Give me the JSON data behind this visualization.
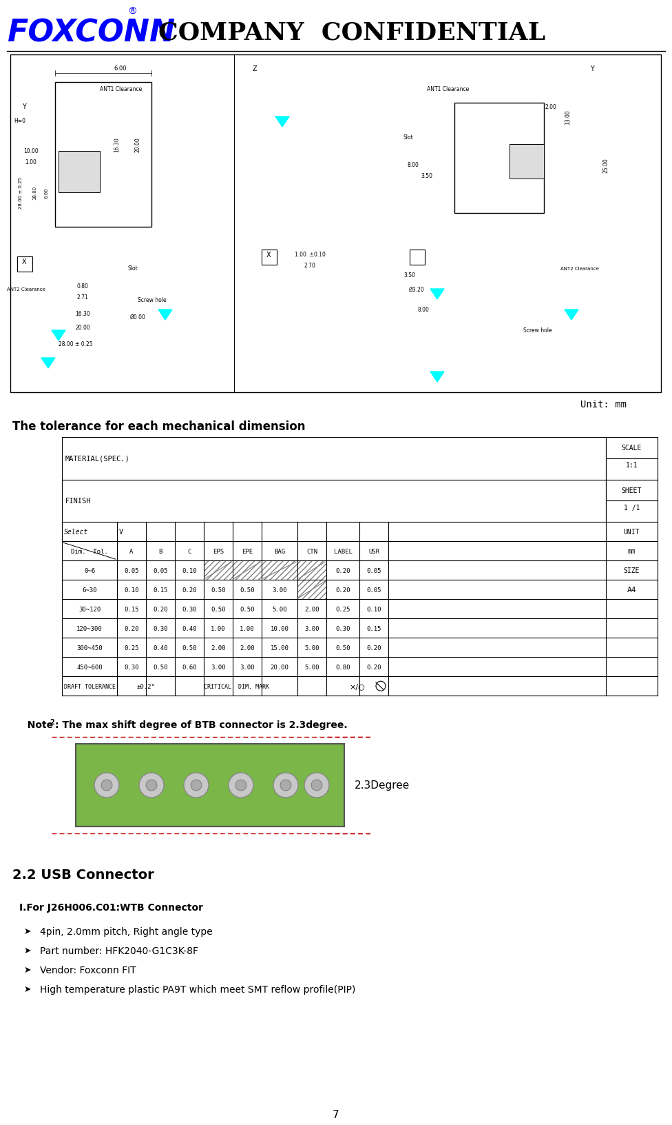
{
  "title": "COMPANY  CONFIDENTIAL",
  "page_number": "7",
  "unit_label": "Unit: mm",
  "tolerance_heading": "The tolerance for each mechanical dimension",
  "note2_text": "Note²: The max shift degree of BTB connector is 2.3degree.",
  "btb_degree_label": "2.3Degree",
  "usb_heading": "2.2 USB Connector",
  "connector_heading": "Ⅰ.For J26H006.C01:WTB Connector",
  "bullet_items": [
    "4pin, 2.0mm pitch, Right angle type",
    "Part number: HFK2040-G1C3K-8F",
    "Vendor: Foxconn FIT",
    "High temperature plastic PA9T which meet SMT reflow profile(PIP)"
  ],
  "table_headers_row1": [
    "Select",
    "V",
    "",
    "",
    "",
    "",
    "",
    "",
    "",
    ""
  ],
  "table_headers_row2": [
    "Dim.  Tol.",
    "A",
    "B",
    "C",
    "EPS",
    "EPE",
    "BAG",
    "CTN",
    "LABEL",
    "USR"
  ],
  "table_data": [
    [
      "0~6",
      "0.05",
      "0.05",
      "0.10",
      "/",
      "/",
      "/",
      "/",
      "0.20",
      "0.05"
    ],
    [
      "6~30",
      "0.10",
      "0.15",
      "0.20",
      "0.50",
      "0.50",
      "3.00",
      "/",
      "0.20",
      "0.05"
    ],
    [
      "30~120",
      "0.15",
      "0.20",
      "0.30",
      "0.50",
      "0.50",
      "5.00",
      "2.00",
      "0.25",
      "0.10"
    ],
    [
      "120~300",
      "0.20",
      "0.30",
      "0.40",
      "1.00",
      "1.00",
      "10.00",
      "3.00",
      "0.30",
      "0.15"
    ],
    [
      "300~450",
      "0.25",
      "0.40",
      "0.50",
      "2.00",
      "2.00",
      "15.00",
      "5.00",
      "0.50",
      "0.20"
    ],
    [
      "450~600",
      "0.30",
      "0.50",
      "0.60",
      "3.00",
      "3.00",
      "20.00",
      "5.00",
      "0.80",
      "0.20"
    ]
  ],
  "draft_tolerance_row": [
    "DRAFT TOLERANCE",
    "±0.2°",
    "",
    "CRITICAL  DIM. MARK",
    "",
    "×/○"
  ],
  "right_col_labels": [
    "SCALE\n1:1",
    "SHEET\n1 /1",
    "UNIT\nmm",
    "SIZE\nA4"
  ],
  "material_label": "MATERIAL(SPEC.)",
  "finish_label": "FINISH",
  "bg_color": "#ffffff",
  "table_font_color": "#000000",
  "heading_color": "#000000",
  "foxconn_color": "#0000ff",
  "green_rect_color": "#7ab648",
  "dashed_line_color": "#c00000"
}
